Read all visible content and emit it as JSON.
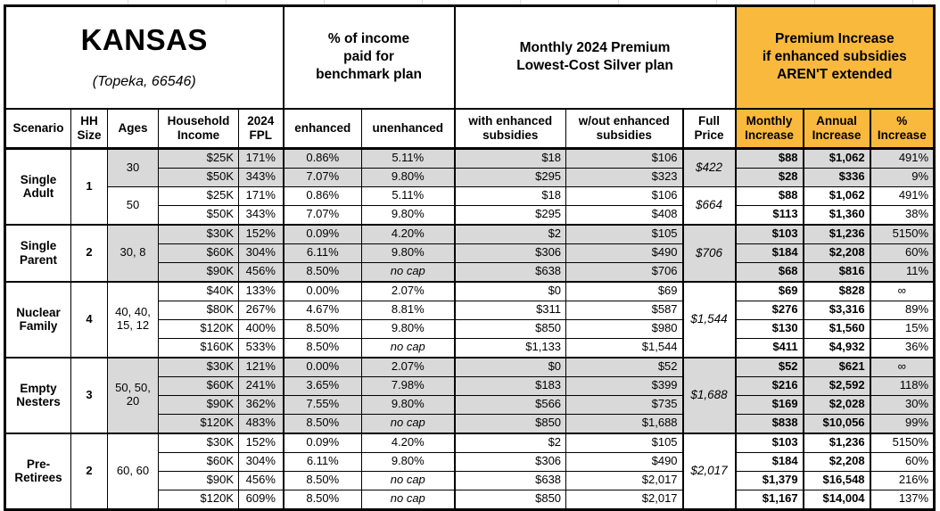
{
  "title": {
    "main": "KANSAS",
    "sub": "(Topeka, 66546)"
  },
  "group_headers": {
    "income_pct": "% of income\npaid for\nbenchmark plan",
    "premium": "Monthly 2024 Premium\nLowest-Cost Silver plan",
    "increase": "Premium Increase\nif enhanced subsidies\nAREN'T extended"
  },
  "columns": [
    "Scenario",
    "HH\nSize",
    "Ages",
    "Household\nIncome",
    "2024\nFPL",
    "enhanced",
    "unenhanced",
    "with enhanced\nsubsidies",
    "w/out enhanced\nsubsidies",
    "Full\nPrice",
    "Monthly\nIncrease",
    "Annual\nIncrease",
    "%\nIncrease"
  ],
  "colors": {
    "header_accent": "#F9B93D",
    "row_shade": "#D9D9D9",
    "border": "#000000",
    "gridline": "#DCDCDC"
  },
  "groups": [
    {
      "scenario": "Single Adult",
      "hh_size": "1",
      "subgroups": [
        {
          "ages": "30",
          "shaded": true,
          "full_price": "$422",
          "rows": [
            {
              "income": "$25K",
              "fpl": "171%",
              "enhanced": "0.86%",
              "unenhanced": "5.11%",
              "with_sub": "$18",
              "wout_sub": "$106",
              "monthly": "$88",
              "annual": "$1,062",
              "pct": "491%"
            },
            {
              "income": "$50K",
              "fpl": "343%",
              "enhanced": "7.07%",
              "unenhanced": "9.80%",
              "with_sub": "$295",
              "wout_sub": "$323",
              "monthly": "$28",
              "annual": "$336",
              "pct": "9%"
            }
          ]
        },
        {
          "ages": "50",
          "shaded": false,
          "full_price": "$664",
          "rows": [
            {
              "income": "$25K",
              "fpl": "171%",
              "enhanced": "0.86%",
              "unenhanced": "5.11%",
              "with_sub": "$18",
              "wout_sub": "$106",
              "monthly": "$88",
              "annual": "$1,062",
              "pct": "491%"
            },
            {
              "income": "$50K",
              "fpl": "343%",
              "enhanced": "7.07%",
              "unenhanced": "9.80%",
              "with_sub": "$295",
              "wout_sub": "$408",
              "monthly": "$113",
              "annual": "$1,360",
              "pct": "38%"
            }
          ]
        }
      ]
    },
    {
      "scenario": "Single Parent",
      "hh_size": "2",
      "subgroups": [
        {
          "ages": "30, 8",
          "shaded": true,
          "full_price": "$706",
          "rows": [
            {
              "income": "$30K",
              "fpl": "152%",
              "enhanced": "0.09%",
              "unenhanced": "4.20%",
              "with_sub": "$2",
              "wout_sub": "$105",
              "monthly": "$103",
              "annual": "$1,236",
              "pct": "5150%"
            },
            {
              "income": "$60K",
              "fpl": "304%",
              "enhanced": "6.11%",
              "unenhanced": "9.80%",
              "with_sub": "$306",
              "wout_sub": "$490",
              "monthly": "$184",
              "annual": "$2,208",
              "pct": "60%"
            },
            {
              "income": "$90K",
              "fpl": "456%",
              "enhanced": "8.50%",
              "unenhanced": "no cap",
              "with_sub": "$638",
              "wout_sub": "$706",
              "monthly": "$68",
              "annual": "$816",
              "pct": "11%"
            }
          ]
        }
      ]
    },
    {
      "scenario": "Nuclear Family",
      "hh_size": "4",
      "subgroups": [
        {
          "ages": "40, 40, 15, 12",
          "shaded": false,
          "full_price": "$1,544",
          "rows": [
            {
              "income": "$40K",
              "fpl": "133%",
              "enhanced": "0.00%",
              "unenhanced": "2.07%",
              "with_sub": "$0",
              "wout_sub": "$69",
              "monthly": "$69",
              "annual": "$828",
              "pct": "∞"
            },
            {
              "income": "$80K",
              "fpl": "267%",
              "enhanced": "4.67%",
              "unenhanced": "8.81%",
              "with_sub": "$311",
              "wout_sub": "$587",
              "monthly": "$276",
              "annual": "$3,316",
              "pct": "89%"
            },
            {
              "income": "$120K",
              "fpl": "400%",
              "enhanced": "8.50%",
              "unenhanced": "9.80%",
              "with_sub": "$850",
              "wout_sub": "$980",
              "monthly": "$130",
              "annual": "$1,560",
              "pct": "15%"
            },
            {
              "income": "$160K",
              "fpl": "533%",
              "enhanced": "8.50%",
              "unenhanced": "no cap",
              "with_sub": "$1,133",
              "wout_sub": "$1,544",
              "monthly": "$411",
              "annual": "$4,932",
              "pct": "36%"
            }
          ]
        }
      ]
    },
    {
      "scenario": "Empty Nesters",
      "hh_size": "3",
      "subgroups": [
        {
          "ages": "50, 50, 20",
          "shaded": true,
          "full_price": "$1,688",
          "rows": [
            {
              "income": "$30K",
              "fpl": "121%",
              "enhanced": "0.00%",
              "unenhanced": "2.07%",
              "with_sub": "$0",
              "wout_sub": "$52",
              "monthly": "$52",
              "annual": "$621",
              "pct": "∞"
            },
            {
              "income": "$60K",
              "fpl": "241%",
              "enhanced": "3.65%",
              "unenhanced": "7.98%",
              "with_sub": "$183",
              "wout_sub": "$399",
              "monthly": "$216",
              "annual": "$2,592",
              "pct": "118%"
            },
            {
              "income": "$90K",
              "fpl": "362%",
              "enhanced": "7.55%",
              "unenhanced": "9.80%",
              "with_sub": "$566",
              "wout_sub": "$735",
              "monthly": "$169",
              "annual": "$2,028",
              "pct": "30%"
            },
            {
              "income": "$120K",
              "fpl": "483%",
              "enhanced": "8.50%",
              "unenhanced": "no cap",
              "with_sub": "$850",
              "wout_sub": "$1,688",
              "monthly": "$838",
              "annual": "$10,056",
              "pct": "99%"
            }
          ]
        }
      ]
    },
    {
      "scenario": "Pre-Retirees",
      "hh_size": "2",
      "subgroups": [
        {
          "ages": "60, 60",
          "shaded": false,
          "full_price": "$2,017",
          "rows": [
            {
              "income": "$30K",
              "fpl": "152%",
              "enhanced": "0.09%",
              "unenhanced": "4.20%",
              "with_sub": "$2",
              "wout_sub": "$105",
              "monthly": "$103",
              "annual": "$1,236",
              "pct": "5150%"
            },
            {
              "income": "$60K",
              "fpl": "304%",
              "enhanced": "6.11%",
              "unenhanced": "9.80%",
              "with_sub": "$306",
              "wout_sub": "$490",
              "monthly": "$184",
              "annual": "$2,208",
              "pct": "60%"
            },
            {
              "income": "$90K",
              "fpl": "456%",
              "enhanced": "8.50%",
              "unenhanced": "no cap",
              "with_sub": "$638",
              "wout_sub": "$2,017",
              "monthly": "$1,379",
              "annual": "$16,548",
              "pct": "216%"
            },
            {
              "income": "$120K",
              "fpl": "609%",
              "enhanced": "8.50%",
              "unenhanced": "no cap",
              "with_sub": "$850",
              "wout_sub": "$2,017",
              "monthly": "$1,167",
              "annual": "$14,004",
              "pct": "137%"
            }
          ]
        }
      ]
    }
  ]
}
